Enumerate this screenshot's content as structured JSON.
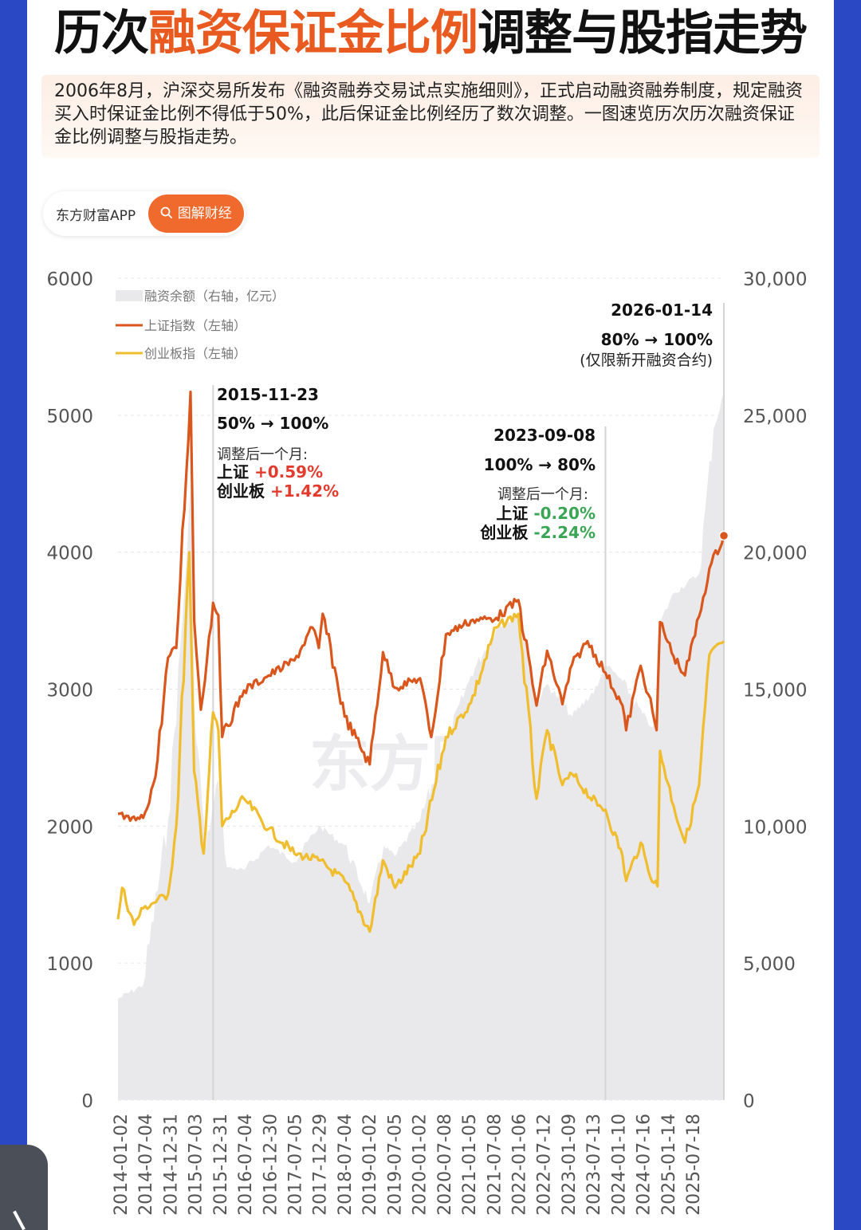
{
  "title": {
    "part1": "历次",
    "highlight": "融资保证金比例",
    "part2": "调整与股指走势"
  },
  "intro": "2006年8月，沪深交易所发布《融资融券交易试点实施细则》，正式启动融资融券制度，规定融资买入时保证金比例不得低于50%，此后保证金比例经历了数次调整。一图速览历次历次融资保证金比例调整与股指走势。",
  "brand": {
    "app": "东方财富APP",
    "search_label": "图解财经",
    "watermark": "东方财富"
  },
  "colors": {
    "accent": "#e85a1f",
    "sse": "#d9561c",
    "chinext": "#f0bd2f",
    "margin_area": "#e9e9eb",
    "up": "#e33b2e",
    "down": "#3aa655"
  },
  "chart_data": {
    "type": "line",
    "left_axis": {
      "label": "",
      "ylim": [
        0,
        6000
      ],
      "ticks": [
        "0",
        "1000",
        "2000",
        "3000",
        "4000",
        "5000",
        "6000"
      ]
    },
    "right_axis": {
      "label": "",
      "ylim": [
        0,
        30000
      ],
      "ticks": [
        "0",
        "5,000",
        "10,000",
        "15,000",
        "20,000",
        "25,000",
        "30,000"
      ]
    },
    "x_tick_labels": [
      "2014-01-02",
      "2014-07-04",
      "2014-12-31",
      "2015-07-03",
      "2015-12-31",
      "2016-07-04",
      "2016-12-30",
      "2017-07-05",
      "2017-12-29",
      "2018-07-04",
      "2019-01-02",
      "2019-07-05",
      "2020-01-02",
      "2020-07-08",
      "2021-01-05",
      "2021-07-08",
      "2022-01-06",
      "2022-07-12",
      "2023-01-09",
      "2023-07-13",
      "2024-01-10",
      "2024-07-16",
      "2025-01-14",
      "2025-07-18"
    ],
    "legend_position": "top-left",
    "grid": true,
    "series": [
      {
        "name": "融资余额（右轴，亿元）",
        "type": "area",
        "axis": "right",
        "points": [
          [
            "2014-01-02",
            3700
          ],
          [
            "2014-07-04",
            4200
          ],
          [
            "2014-12-31",
            10200
          ],
          [
            "2015-04-15",
            17500
          ],
          [
            "2015-06-18",
            22700
          ],
          [
            "2015-07-09",
            14500
          ],
          [
            "2015-09-30",
            9200
          ],
          [
            "2015-12-31",
            11700
          ],
          [
            "2016-03-01",
            8500
          ],
          [
            "2016-07-04",
            8400
          ],
          [
            "2016-12-30",
            9300
          ],
          [
            "2017-07-05",
            8700
          ],
          [
            "2017-12-29",
            10000
          ],
          [
            "2018-07-04",
            9300
          ],
          [
            "2019-01-02",
            7200
          ],
          [
            "2019-04-15",
            9300
          ],
          [
            "2019-07-05",
            8900
          ],
          [
            "2020-01-02",
            10200
          ],
          [
            "2020-07-08",
            13000
          ],
          [
            "2021-01-05",
            15500
          ],
          [
            "2021-07-08",
            17200
          ],
          [
            "2022-01-06",
            17800
          ],
          [
            "2022-05-01",
            14500
          ],
          [
            "2022-07-12",
            15200
          ],
          [
            "2023-01-09",
            14000
          ],
          [
            "2023-07-13",
            15100
          ],
          [
            "2023-09-08",
            15900
          ],
          [
            "2024-01-10",
            15300
          ],
          [
            "2024-07-16",
            13700
          ],
          [
            "2024-09-20",
            13600
          ],
          [
            "2024-10-15",
            17500
          ],
          [
            "2025-01-14",
            18500
          ],
          [
            "2025-07-18",
            19200
          ],
          [
            "2025-11-01",
            24500
          ],
          [
            "2026-01-14",
            25800
          ]
        ]
      },
      {
        "name": "上证指数（左轴）",
        "type": "line",
        "axis": "left",
        "points": [
          [
            "2014-01-02",
            2090
          ],
          [
            "2014-04-01",
            2040
          ],
          [
            "2014-07-04",
            2060
          ],
          [
            "2014-10-01",
            2360
          ],
          [
            "2014-12-31",
            3230
          ],
          [
            "2015-03-01",
            3300
          ],
          [
            "2015-06-12",
            5170
          ],
          [
            "2015-07-09",
            3500
          ],
          [
            "2015-08-26",
            2850
          ],
          [
            "2015-11-23",
            3630
          ],
          [
            "2015-12-31",
            3540
          ],
          [
            "2016-01-28",
            2650
          ],
          [
            "2016-07-04",
            2990
          ],
          [
            "2016-12-30",
            3100
          ],
          [
            "2017-07-05",
            3210
          ],
          [
            "2017-11-13",
            3450
          ],
          [
            "2017-12-29",
            3300
          ],
          [
            "2018-01-26",
            3550
          ],
          [
            "2018-07-04",
            2800
          ],
          [
            "2019-01-02",
            2450
          ],
          [
            "2019-04-08",
            3270
          ],
          [
            "2019-07-05",
            3010
          ],
          [
            "2020-01-02",
            3080
          ],
          [
            "2020-03-23",
            2650
          ],
          [
            "2020-07-08",
            3400
          ],
          [
            "2021-01-05",
            3500
          ],
          [
            "2021-07-08",
            3520
          ],
          [
            "2021-12-15",
            3650
          ],
          [
            "2022-04-26",
            2880
          ],
          [
            "2022-07-12",
            3280
          ],
          [
            "2022-10-31",
            2890
          ],
          [
            "2023-01-09",
            3180
          ],
          [
            "2023-05-01",
            3350
          ],
          [
            "2023-09-08",
            3120
          ],
          [
            "2024-01-10",
            2880
          ],
          [
            "2024-02-05",
            2700
          ],
          [
            "2024-05-20",
            3170
          ],
          [
            "2024-07-16",
            2960
          ],
          [
            "2024-09-13",
            2700
          ],
          [
            "2024-10-08",
            3490
          ],
          [
            "2025-01-14",
            3240
          ],
          [
            "2025-04-07",
            3100
          ],
          [
            "2025-07-18",
            3530
          ],
          [
            "2025-10-01",
            3880
          ],
          [
            "2026-01-14",
            4120
          ]
        ]
      },
      {
        "name": "创业板指（左轴）",
        "type": "line",
        "axis": "left",
        "points": [
          [
            "2014-01-02",
            1320
          ],
          [
            "2014-02-01",
            1550
          ],
          [
            "2014-04-28",
            1280
          ],
          [
            "2014-07-04",
            1400
          ],
          [
            "2014-12-31",
            1500
          ],
          [
            "2015-03-01",
            2000
          ],
          [
            "2015-06-03",
            4000
          ],
          [
            "2015-07-08",
            2400
          ],
          [
            "2015-09-15",
            1800
          ],
          [
            "2015-11-23",
            2830
          ],
          [
            "2015-12-31",
            2700
          ],
          [
            "2016-01-28",
            2000
          ],
          [
            "2016-07-04",
            2200
          ],
          [
            "2016-12-30",
            1980
          ],
          [
            "2017-07-05",
            1800
          ],
          [
            "2017-12-29",
            1750
          ],
          [
            "2018-07-04",
            1600
          ],
          [
            "2019-01-02",
            1230
          ],
          [
            "2019-04-08",
            1750
          ],
          [
            "2019-07-05",
            1550
          ],
          [
            "2020-01-02",
            1800
          ],
          [
            "2020-07-08",
            2650
          ],
          [
            "2021-01-05",
            2900
          ],
          [
            "2021-07-08",
            3450
          ],
          [
            "2021-12-15",
            3550
          ],
          [
            "2022-04-26",
            2200
          ],
          [
            "2022-07-12",
            2700
          ],
          [
            "2022-10-31",
            2300
          ],
          [
            "2023-01-09",
            2380
          ],
          [
            "2023-07-13",
            2150
          ],
          [
            "2023-09-08",
            2120
          ],
          [
            "2024-01-10",
            1780
          ],
          [
            "2024-02-05",
            1600
          ],
          [
            "2024-05-20",
            1880
          ],
          [
            "2024-07-16",
            1670
          ],
          [
            "2024-09-20",
            1560
          ],
          [
            "2024-10-08",
            2550
          ],
          [
            "2025-01-14",
            2150
          ],
          [
            "2025-04-07",
            1880
          ],
          [
            "2025-07-18",
            2300
          ],
          [
            "2025-10-01",
            3250
          ],
          [
            "2026-01-14",
            3350
          ]
        ]
      }
    ],
    "annotations": [
      {
        "date": "2015-11-23",
        "ratio": "50% → 100%",
        "after_label": "调整后一个月:",
        "sse_label": "上证",
        "sse_change": "+0.59%",
        "cyb_label": "创业板",
        "cyb_change": "+1.42%"
      },
      {
        "date": "2023-09-08",
        "ratio": "100% → 80%",
        "after_label": "调整后一个月:",
        "sse_label": "上证",
        "sse_change": "-0.20%",
        "cyb_label": "创业板",
        "cyb_change": "-2.24%"
      },
      {
        "date": "2026-01-14",
        "ratio": "80% → 100%",
        "note": "(仅限新开融资合约)"
      }
    ]
  }
}
